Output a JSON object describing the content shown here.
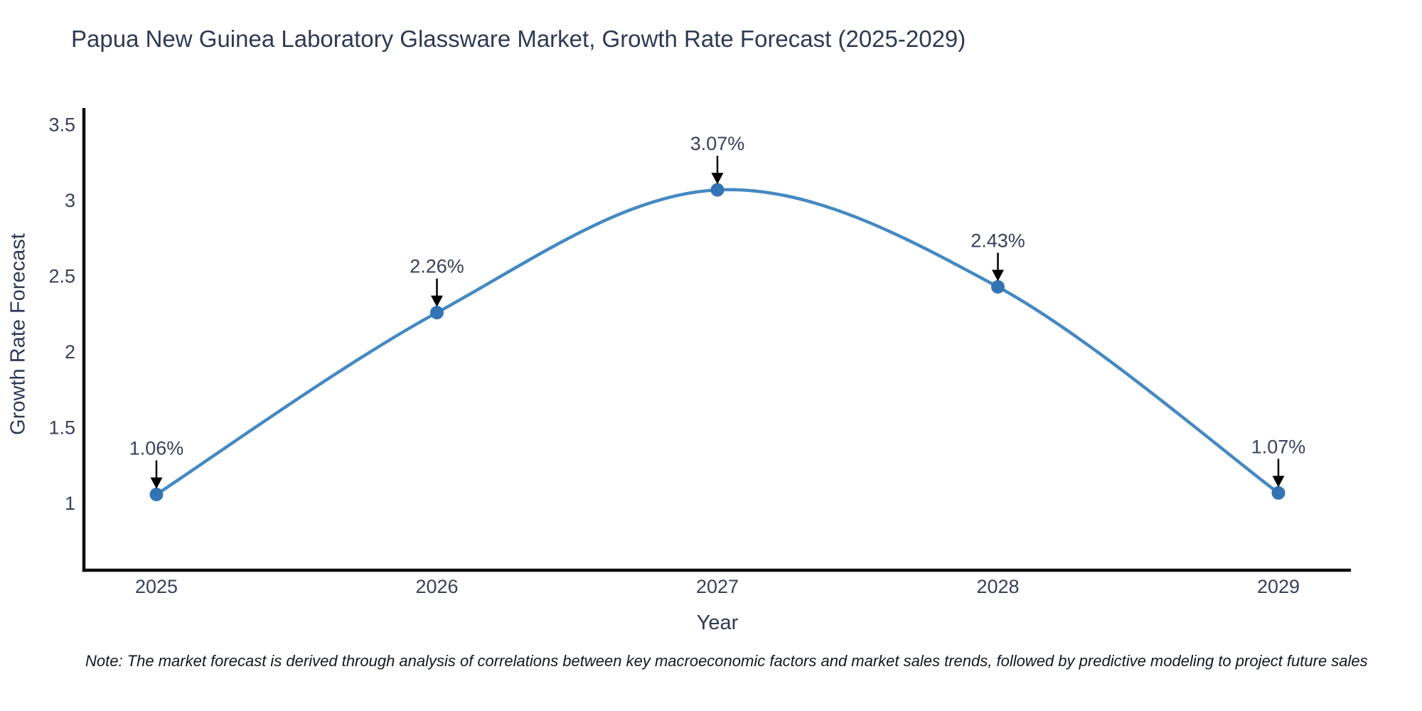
{
  "title": "Papua New Guinea Laboratory Glassware Market, Growth Rate Forecast (2025-2029)",
  "note": "Note: The market forecast is derived through analysis of correlations between key macroeconomic factors and market sales trends, followed by predictive modeling to project future sales",
  "chart_data": {
    "type": "line",
    "title": "Papua New Guinea Laboratory Glassware Market, Growth Rate Forecast (2025-2029)",
    "xlabel": "Year",
    "ylabel": "Growth Rate Forecast",
    "categories": [
      "2025",
      "2026",
      "2027",
      "2028",
      "2029"
    ],
    "x": [
      2025,
      2026,
      2027,
      2028,
      2029
    ],
    "values": [
      1.06,
      2.26,
      3.07,
      2.43,
      1.07
    ],
    "point_labels": [
      "1.06%",
      "2.26%",
      "3.07%",
      "2.43%",
      "1.07%"
    ],
    "yticks": [
      1,
      1.5,
      2,
      2.5,
      3,
      3.5
    ],
    "ytick_labels": [
      "1",
      "1.5",
      "2",
      "2.5",
      "3",
      "3.5"
    ],
    "ylim": [
      0.56,
      3.61
    ],
    "grid": false,
    "smooth": true,
    "legend": false,
    "annotation_arrows": true,
    "colors": {
      "line": "#4589c2",
      "marker": "#3375b4",
      "axis": "#0d0d0d",
      "tick_text": "#37415a",
      "annotation_text": "#37415a",
      "arrow": "#000000",
      "title_text": "#2e3a53"
    }
  }
}
